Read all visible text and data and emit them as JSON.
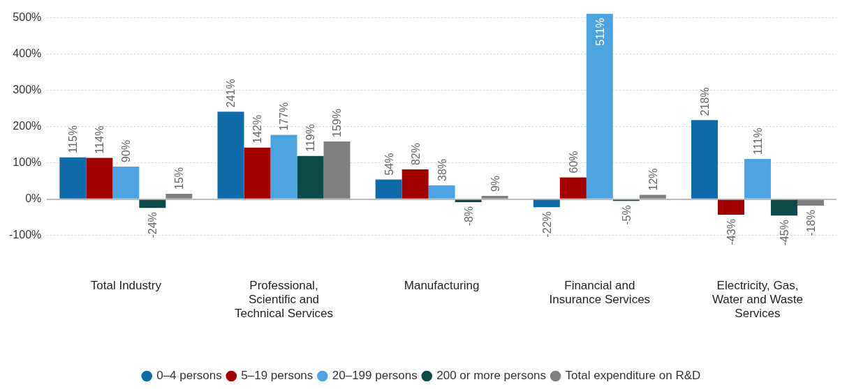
{
  "chart_data": {
    "type": "bar",
    "categories": [
      "Total Industry",
      "Professional, Scientific and Technical Services",
      "Manufacturing",
      "Financial and Insurance Services",
      "Electricity, Gas, Water and Waste Services"
    ],
    "series": [
      {
        "name": "0–4 persons",
        "color": "#0e6aa8",
        "values": [
          115,
          241,
          54,
          -22,
          218
        ],
        "value_labels": [
          "115%",
          "241%",
          "54%",
          "-22%",
          "218%"
        ]
      },
      {
        "name": "5–19 persons",
        "color": "#a30000",
        "values": [
          114,
          142,
          82,
          60,
          -43
        ],
        "value_labels": [
          "114%",
          "142%",
          "82%",
          "60%",
          "-43%"
        ]
      },
      {
        "name": "20–199 persons",
        "color": "#4da3e0",
        "values": [
          90,
          177,
          38,
          511,
          111
        ],
        "value_labels": [
          "90%",
          "177%",
          "38%",
          "511%",
          "111%"
        ]
      },
      {
        "name": "200 or more persons",
        "color": "#0c4a4a",
        "values": [
          -24,
          119,
          -8,
          -5,
          -45
        ],
        "value_labels": [
          "-24%",
          "119%",
          "-8%",
          "-5%",
          "-45%"
        ]
      },
      {
        "name": "Total expenditure on R&D",
        "color": "#7f7f7f",
        "values": [
          15,
          159,
          9,
          12,
          -18
        ],
        "value_labels": [
          "15%",
          "159%",
          "9%",
          "12%",
          "-18%"
        ]
      }
    ],
    "ylim": [
      -100,
      515
    ],
    "yticks": [
      {
        "value": -100,
        "label": "-100%"
      },
      {
        "value": 0,
        "label": "0%"
      },
      {
        "value": 100,
        "label": "100%"
      },
      {
        "value": 200,
        "label": "200%"
      },
      {
        "value": 300,
        "label": "300%"
      },
      {
        "value": 400,
        "label": "400%"
      },
      {
        "value": 500,
        "label": "500%"
      }
    ],
    "grid": "y",
    "legend": "bottom",
    "marker": "circle"
  }
}
